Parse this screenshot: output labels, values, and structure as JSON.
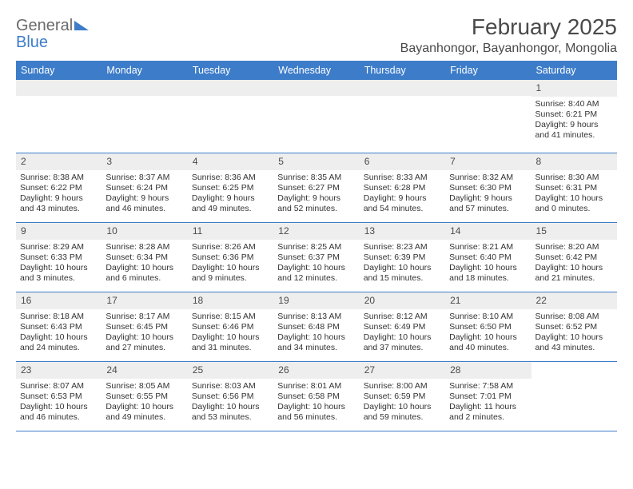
{
  "logo": {
    "general": "General",
    "blue": "Blue"
  },
  "header": {
    "month_year": "February 2025",
    "location": "Bayanhongor, Bayanhongor, Mongolia"
  },
  "colors": {
    "header_bar": "#3d7cc9",
    "daynum_bg": "#eeeeee",
    "text": "#333333",
    "title_text": "#4a4a4a",
    "row_border": "#3d7cc9"
  },
  "days_of_week": [
    "Sunday",
    "Monday",
    "Tuesday",
    "Wednesday",
    "Thursday",
    "Friday",
    "Saturday"
  ],
  "calendar": {
    "blank_leading": 6,
    "trailing_blank": 1,
    "days": [
      {
        "n": "1",
        "sunrise": "8:40 AM",
        "sunset": "6:21 PM",
        "daylight_h": "9",
        "daylight_m": "41"
      },
      {
        "n": "2",
        "sunrise": "8:38 AM",
        "sunset": "6:22 PM",
        "daylight_h": "9",
        "daylight_m": "43"
      },
      {
        "n": "3",
        "sunrise": "8:37 AM",
        "sunset": "6:24 PM",
        "daylight_h": "9",
        "daylight_m": "46"
      },
      {
        "n": "4",
        "sunrise": "8:36 AM",
        "sunset": "6:25 PM",
        "daylight_h": "9",
        "daylight_m": "49"
      },
      {
        "n": "5",
        "sunrise": "8:35 AM",
        "sunset": "6:27 PM",
        "daylight_h": "9",
        "daylight_m": "52"
      },
      {
        "n": "6",
        "sunrise": "8:33 AM",
        "sunset": "6:28 PM",
        "daylight_h": "9",
        "daylight_m": "54"
      },
      {
        "n": "7",
        "sunrise": "8:32 AM",
        "sunset": "6:30 PM",
        "daylight_h": "9",
        "daylight_m": "57"
      },
      {
        "n": "8",
        "sunrise": "8:30 AM",
        "sunset": "6:31 PM",
        "daylight_h": "10",
        "daylight_m": "0"
      },
      {
        "n": "9",
        "sunrise": "8:29 AM",
        "sunset": "6:33 PM",
        "daylight_h": "10",
        "daylight_m": "3"
      },
      {
        "n": "10",
        "sunrise": "8:28 AM",
        "sunset": "6:34 PM",
        "daylight_h": "10",
        "daylight_m": "6"
      },
      {
        "n": "11",
        "sunrise": "8:26 AM",
        "sunset": "6:36 PM",
        "daylight_h": "10",
        "daylight_m": "9"
      },
      {
        "n": "12",
        "sunrise": "8:25 AM",
        "sunset": "6:37 PM",
        "daylight_h": "10",
        "daylight_m": "12"
      },
      {
        "n": "13",
        "sunrise": "8:23 AM",
        "sunset": "6:39 PM",
        "daylight_h": "10",
        "daylight_m": "15"
      },
      {
        "n": "14",
        "sunrise": "8:21 AM",
        "sunset": "6:40 PM",
        "daylight_h": "10",
        "daylight_m": "18"
      },
      {
        "n": "15",
        "sunrise": "8:20 AM",
        "sunset": "6:42 PM",
        "daylight_h": "10",
        "daylight_m": "21"
      },
      {
        "n": "16",
        "sunrise": "8:18 AM",
        "sunset": "6:43 PM",
        "daylight_h": "10",
        "daylight_m": "24"
      },
      {
        "n": "17",
        "sunrise": "8:17 AM",
        "sunset": "6:45 PM",
        "daylight_h": "10",
        "daylight_m": "27"
      },
      {
        "n": "18",
        "sunrise": "8:15 AM",
        "sunset": "6:46 PM",
        "daylight_h": "10",
        "daylight_m": "31"
      },
      {
        "n": "19",
        "sunrise": "8:13 AM",
        "sunset": "6:48 PM",
        "daylight_h": "10",
        "daylight_m": "34"
      },
      {
        "n": "20",
        "sunrise": "8:12 AM",
        "sunset": "6:49 PM",
        "daylight_h": "10",
        "daylight_m": "37"
      },
      {
        "n": "21",
        "sunrise": "8:10 AM",
        "sunset": "6:50 PM",
        "daylight_h": "10",
        "daylight_m": "40"
      },
      {
        "n": "22",
        "sunrise": "8:08 AM",
        "sunset": "6:52 PM",
        "daylight_h": "10",
        "daylight_m": "43"
      },
      {
        "n": "23",
        "sunrise": "8:07 AM",
        "sunset": "6:53 PM",
        "daylight_h": "10",
        "daylight_m": "46"
      },
      {
        "n": "24",
        "sunrise": "8:05 AM",
        "sunset": "6:55 PM",
        "daylight_h": "10",
        "daylight_m": "49"
      },
      {
        "n": "25",
        "sunrise": "8:03 AM",
        "sunset": "6:56 PM",
        "daylight_h": "10",
        "daylight_m": "53"
      },
      {
        "n": "26",
        "sunrise": "8:01 AM",
        "sunset": "6:58 PM",
        "daylight_h": "10",
        "daylight_m": "56"
      },
      {
        "n": "27",
        "sunrise": "8:00 AM",
        "sunset": "6:59 PM",
        "daylight_h": "10",
        "daylight_m": "59"
      },
      {
        "n": "28",
        "sunrise": "7:58 AM",
        "sunset": "7:01 PM",
        "daylight_h": "11",
        "daylight_m": "2"
      }
    ]
  },
  "labels": {
    "sunrise": "Sunrise:",
    "sunset": "Sunset:",
    "daylight": "Daylight:",
    "hours_word": "hours",
    "and_word": "and",
    "minutes_word": "minutes."
  }
}
